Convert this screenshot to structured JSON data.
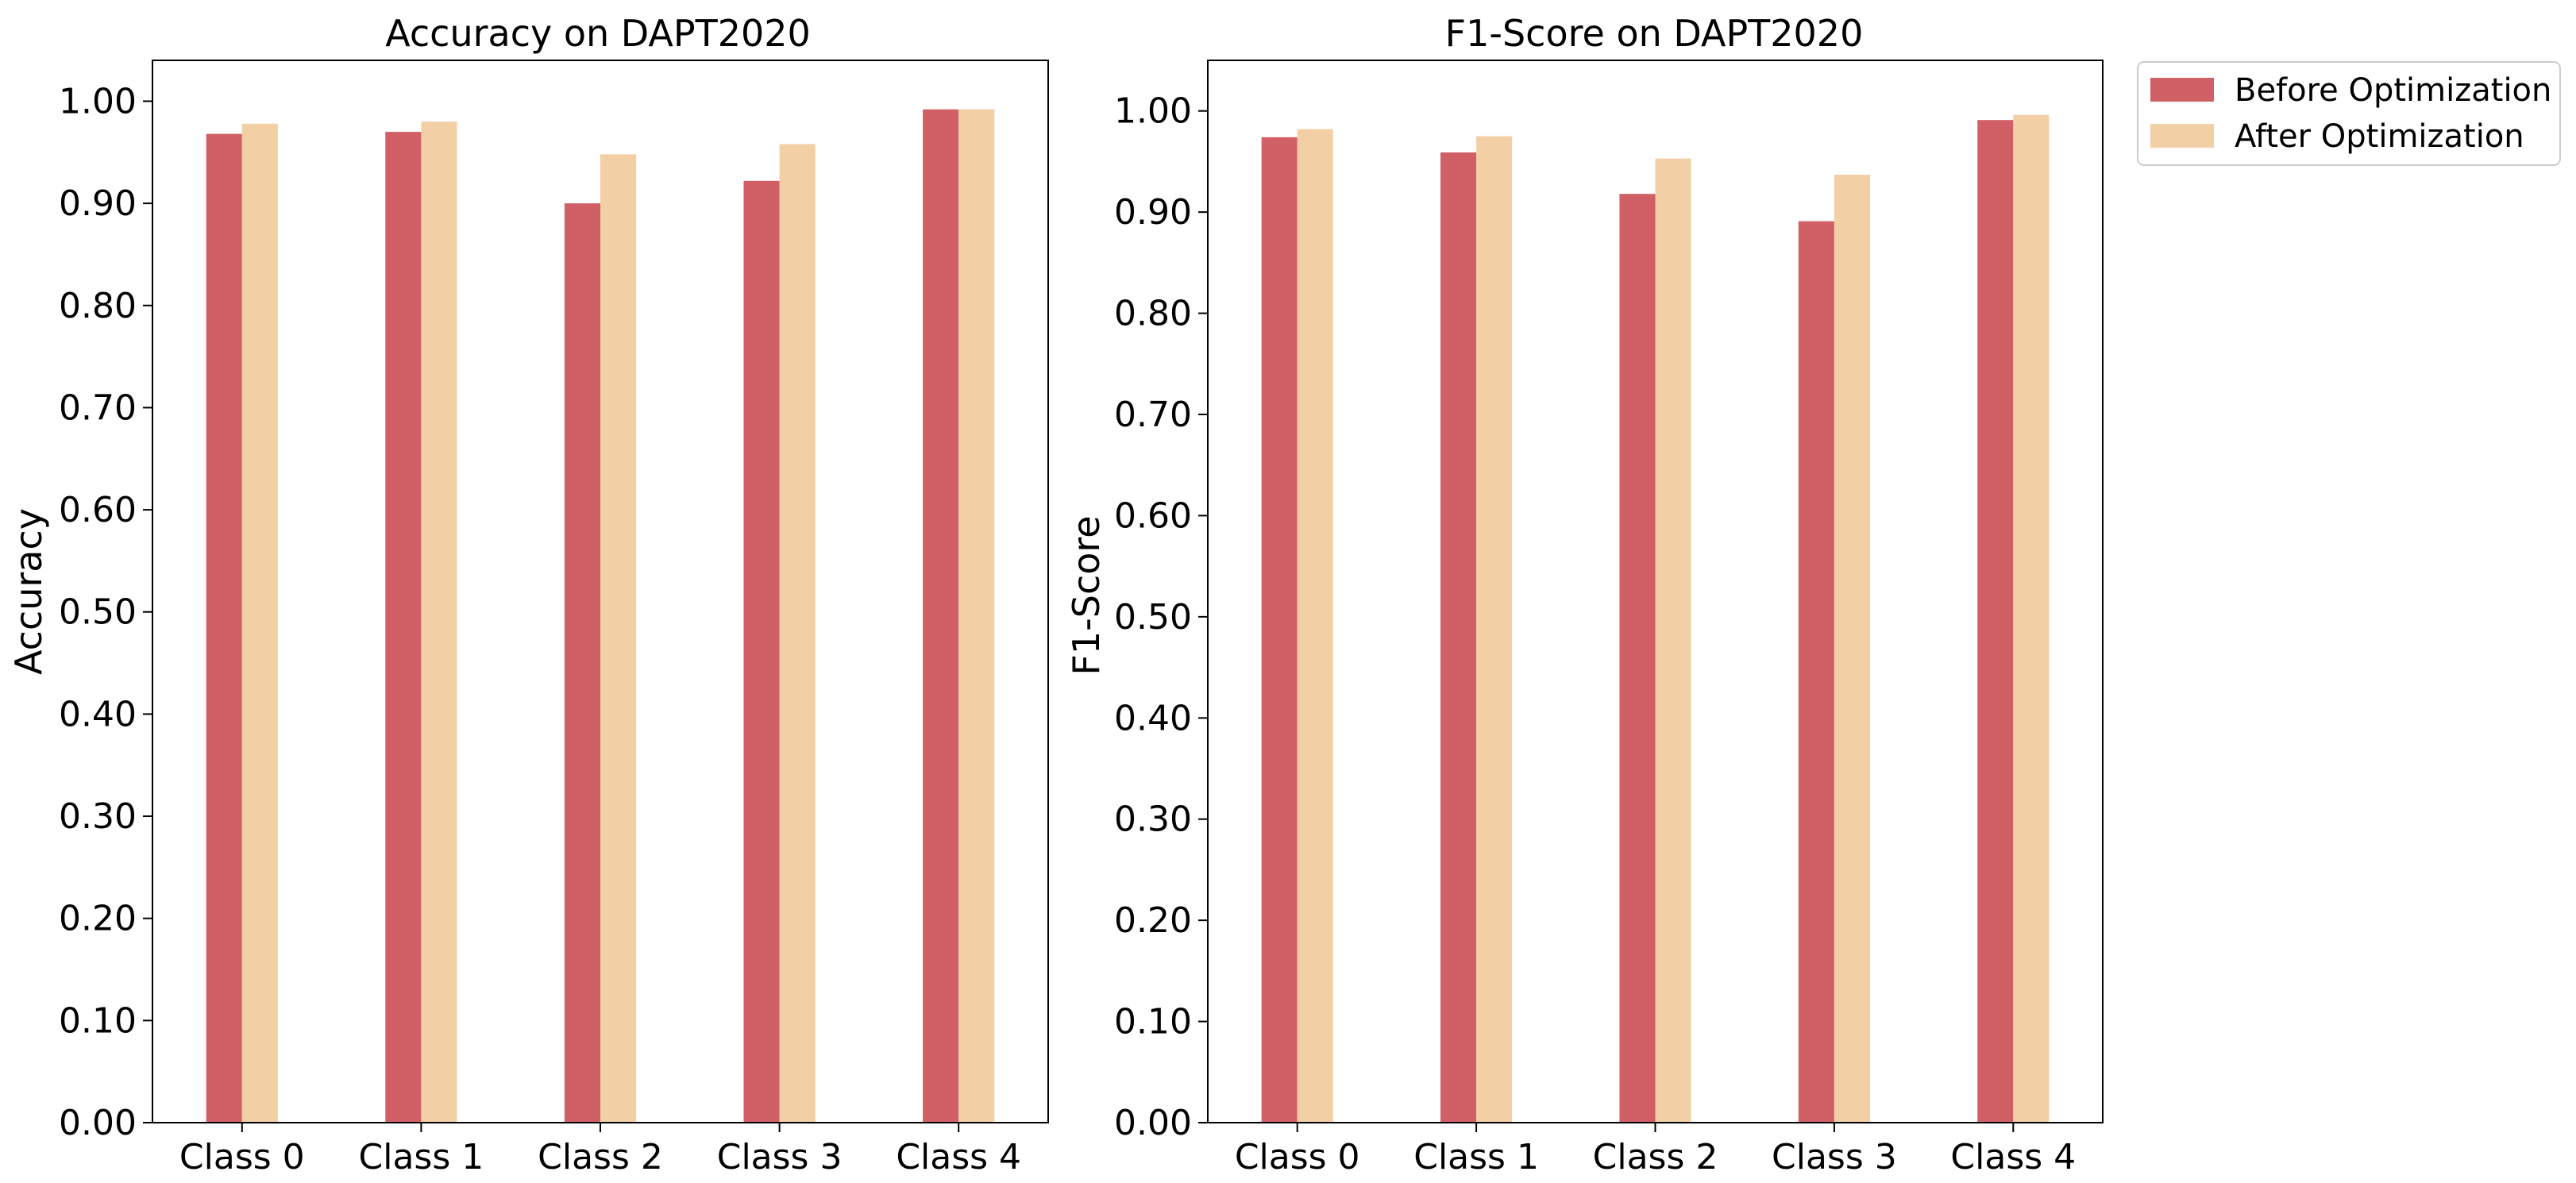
{
  "chart_data": [
    {
      "type": "bar",
      "title": "Accuracy on DAPT2020",
      "xlabel": "",
      "ylabel": "Accuracy",
      "ylim": [
        0,
        1.04
      ],
      "yticks": [
        "0.00",
        "0.10",
        "0.20",
        "0.30",
        "0.40",
        "0.50",
        "0.60",
        "0.70",
        "0.80",
        "0.90",
        "1.00"
      ],
      "categories": [
        "Class 0",
        "Class 1",
        "Class 2",
        "Class 3",
        "Class 4"
      ],
      "series": [
        {
          "name": "Before Optimization",
          "color": "#d05f66",
          "values": [
            0.968,
            0.97,
            0.9,
            0.922,
            0.992
          ]
        },
        {
          "name": "After Optimization",
          "color": "#f2cfa5",
          "values": [
            0.978,
            0.98,
            0.948,
            0.958,
            0.992
          ]
        }
      ],
      "grid": false
    },
    {
      "type": "bar",
      "title": "F1-Score on DAPT2020",
      "xlabel": "",
      "ylabel": "F1-Score",
      "ylim": [
        0,
        1.05
      ],
      "yticks": [
        "0.00",
        "0.10",
        "0.20",
        "0.30",
        "0.40",
        "0.50",
        "0.60",
        "0.70",
        "0.80",
        "0.90",
        "1.00"
      ],
      "categories": [
        "Class 0",
        "Class 1",
        "Class 2",
        "Class 3",
        "Class 4"
      ],
      "series": [
        {
          "name": "Before Optimization",
          "color": "#d05f66",
          "values": [
            0.974,
            0.959,
            0.918,
            0.891,
            0.991
          ]
        },
        {
          "name": "After Optimization",
          "color": "#f2cfa5",
          "values": [
            0.982,
            0.975,
            0.953,
            0.937,
            0.996
          ]
        }
      ],
      "grid": false
    }
  ],
  "legend": {
    "placement": "outside-right-top",
    "items": [
      {
        "label": "Before Optimization",
        "color": "#d05f66"
      },
      {
        "label": "After Optimization",
        "color": "#f2cfa5"
      }
    ]
  }
}
